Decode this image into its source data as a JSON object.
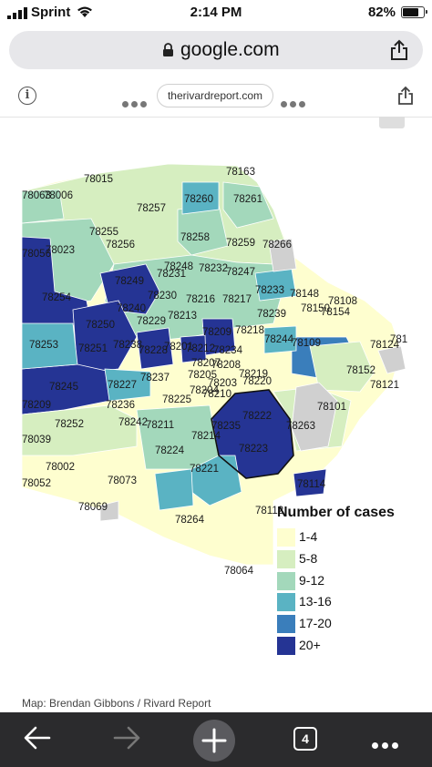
{
  "status_bar": {
    "carrier": "Sprint",
    "time": "2:14 PM",
    "battery": "82%",
    "battery_level": 0.82
  },
  "browser": {
    "url_domain": "google.com",
    "amp_source": "therivardreport.com",
    "open_tabs": "4"
  },
  "map": {
    "colors": {
      "c1": "#fefecf",
      "c2": "#d6eec0",
      "c3": "#a3d8bb",
      "c4": "#5ab3c3",
      "c5": "#3a7ebb",
      "c6": "#253494",
      "nodata": "#d0d0d0",
      "outline": "#111111"
    },
    "zip_labels": [
      "78163",
      "78015",
      "78006",
      "78063",
      "78257",
      "78260",
      "78261",
      "78255",
      "78258",
      "78259",
      "78266",
      "78056",
      "78023",
      "78256",
      "78248",
      "78232",
      "78247",
      "78249",
      "78231",
      "78230",
      "78216",
      "78217",
      "78233",
      "78148",
      "78108",
      "78254",
      "78240",
      "78213",
      "78239",
      "78150",
      "78154",
      "78229",
      "78250",
      "78209",
      "78218",
      "78244",
      "78109",
      "78124",
      "781",
      "78253",
      "78251",
      "78238",
      "78228",
      "78201",
      "78212",
      "78234",
      "78208",
      "78152",
      "78237",
      "78205",
      "78219",
      "78121",
      "78227",
      "78207",
      "78220",
      "78245",
      "78209",
      "78236",
      "78225",
      "78210",
      "78101",
      "78252",
      "78242",
      "78211",
      "78203",
      "78204",
      "78222",
      "78235",
      "78263",
      "78214",
      "78223",
      "78039",
      "78224",
      "78002",
      "78221",
      "78073",
      "78052",
      "78114",
      "78069",
      "78264",
      "78112",
      "78064"
    ],
    "legend": {
      "title": "Number of cases",
      "items": [
        {
          "label": "1-4",
          "color": "#fefecf"
        },
        {
          "label": "5-8",
          "color": "#d6eec0"
        },
        {
          "label": "9-12",
          "color": "#a3d8bb"
        },
        {
          "label": "13-16",
          "color": "#5ab3c3"
        },
        {
          "label": "17-20",
          "color": "#3a7ebb"
        },
        {
          "label": "20+",
          "color": "#253494"
        }
      ]
    },
    "credit": "Map: Brendan Gibbons / Rivard Report"
  },
  "icons": {
    "back": "arrow-left-icon",
    "forward": "arrow-right-icon",
    "new_tab": "plus-icon",
    "tabs": "tab-count-icon",
    "menu": "more-dots-icon",
    "share": "share-icon",
    "lock": "lock-icon",
    "info": "info-icon"
  }
}
